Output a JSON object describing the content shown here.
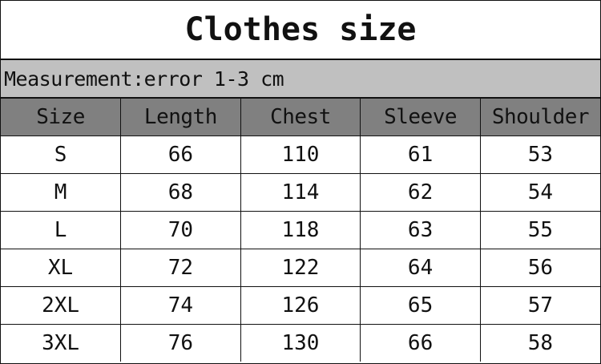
{
  "title": "Clothes size",
  "note": "Measurement:error 1-3 cm",
  "colors": {
    "note_bg": "#c0c0c0",
    "header_bg": "#808080"
  },
  "columns": [
    "Size",
    "Length",
    "Chest",
    "Sleeve",
    "Shoulder"
  ],
  "rows": [
    [
      "S",
      "66",
      "110",
      "61",
      "53"
    ],
    [
      "M",
      "68",
      "114",
      "62",
      "54"
    ],
    [
      "L",
      "70",
      "118",
      "63",
      "55"
    ],
    [
      "XL",
      "72",
      "122",
      "64",
      "56"
    ],
    [
      "2XL",
      "74",
      "126",
      "65",
      "57"
    ],
    [
      "3XL",
      "76",
      "130",
      "66",
      "58"
    ]
  ]
}
